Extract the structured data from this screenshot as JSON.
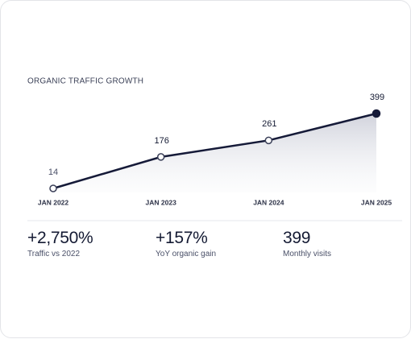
{
  "chart_data": {
    "type": "line",
    "title": "ORGANIC TRAFFIC GROWTH",
    "categories": [
      "JAN 2022",
      "JAN 2023",
      "JAN 2024",
      "JAN 2025"
    ],
    "values": [
      14,
      176,
      261,
      399
    ],
    "color": "#151a38"
  },
  "stats": [
    {
      "value": "+2,750%",
      "label": "Traffic vs 2022"
    },
    {
      "value": "+157%",
      "label": "YoY organic gain"
    },
    {
      "value": "399",
      "label": "Monthly visits"
    }
  ]
}
